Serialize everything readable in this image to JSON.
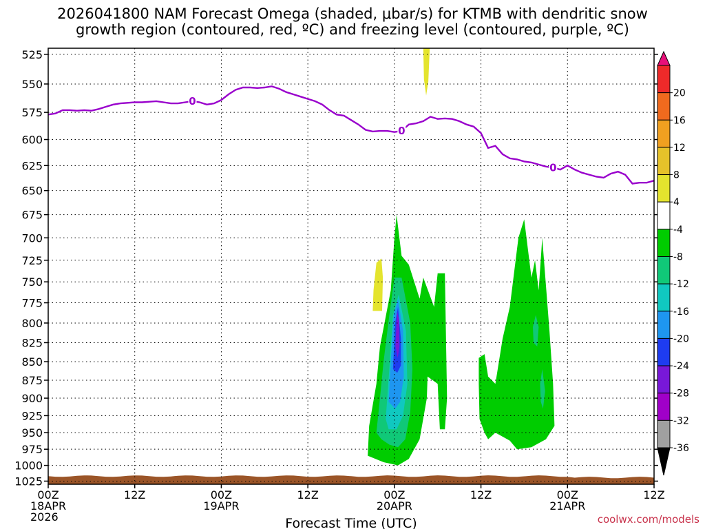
{
  "title_line1": "2026041800 NAM Forecast Omega (shaded, μbar/s) for KTMB with dendritic snow",
  "title_line2": "growth region (contoured, red, ºC) and freezing level (contoured, purple, ºC)",
  "credit": "coolwx.com/models",
  "chart_data": {
    "type": "heatmap",
    "title": "2026041800 NAM Forecast Omega (shaded, μbar/s) for KTMB with dendritic snow growth region (contoured, red, ºC) and freezing level (contoured, purple, ºC)",
    "xlabel": "Forecast Time (UTC)",
    "ylabel": "",
    "x_range_hours": [
      0,
      84
    ],
    "x_ticks": [
      {
        "hour": 0,
        "lines": [
          "00Z",
          "18APR",
          "2026"
        ]
      },
      {
        "hour": 12,
        "lines": [
          "12Z"
        ]
      },
      {
        "hour": 24,
        "lines": [
          "00Z",
          "19APR"
        ]
      },
      {
        "hour": 36,
        "lines": [
          "12Z"
        ]
      },
      {
        "hour": 48,
        "lines": [
          "00Z",
          "20APR"
        ]
      },
      {
        "hour": 60,
        "lines": [
          "12Z"
        ]
      },
      {
        "hour": 72,
        "lines": [
          "00Z",
          "21APR"
        ]
      },
      {
        "hour": 84,
        "lines": [
          "12Z"
        ]
      }
    ],
    "y_scale": "log-pressure",
    "y_range_mb": [
      1030,
      520
    ],
    "y_ticks": [
      525,
      550,
      575,
      600,
      625,
      650,
      675,
      700,
      725,
      750,
      775,
      800,
      825,
      850,
      875,
      900,
      925,
      950,
      975,
      1000,
      1025
    ],
    "grid": true,
    "colorbar": {
      "labels": [
        "20",
        "16",
        "12",
        "8",
        "4",
        "-4",
        "-8",
        "-12",
        "-16",
        "-20",
        "-24",
        "-28",
        "-32",
        "-36"
      ],
      "colors": [
        "#e8107a",
        "#ee2a2a",
        "#f06a1e",
        "#f0a020",
        "#e6c22a",
        "#e4e42e",
        "#ffffff",
        "#00cc00",
        "#10c878",
        "#10c8c0",
        "#1e96f0",
        "#1e3cf0",
        "#7818d8",
        "#a000c8",
        "#a0a0a0",
        "#000000"
      ]
    },
    "freezing_level": {
      "label": "0",
      "color": "#9900cc",
      "points": [
        [
          0,
          577
        ],
        [
          1,
          576
        ],
        [
          2,
          573
        ],
        [
          3,
          573
        ],
        [
          4,
          573.5
        ],
        [
          5,
          573
        ],
        [
          6,
          573.5
        ],
        [
          7,
          572
        ],
        [
          8,
          570
        ],
        [
          9,
          568
        ],
        [
          10,
          567
        ],
        [
          11,
          566.5
        ],
        [
          12,
          566
        ],
        [
          13,
          566
        ],
        [
          14,
          565.5
        ],
        [
          15,
          565
        ],
        [
          16,
          566
        ],
        [
          17,
          567
        ],
        [
          18,
          567
        ],
        [
          19,
          566
        ],
        [
          20,
          565
        ],
        [
          21,
          566
        ],
        [
          22,
          568
        ],
        [
          23,
          567
        ],
        [
          24,
          564
        ],
        [
          25,
          559
        ],
        [
          26,
          555
        ],
        [
          27,
          553
        ],
        [
          28,
          553
        ],
        [
          29,
          553.5
        ],
        [
          30,
          553
        ],
        [
          31,
          552
        ],
        [
          32,
          554
        ],
        [
          33,
          557
        ],
        [
          34,
          559
        ],
        [
          35,
          561
        ],
        [
          36,
          563
        ],
        [
          37,
          565
        ],
        [
          38,
          568
        ],
        [
          39,
          573
        ],
        [
          40,
          577
        ],
        [
          41,
          578
        ],
        [
          42,
          582
        ],
        [
          43,
          586
        ],
        [
          44,
          591
        ],
        [
          45,
          592.5
        ],
        [
          46,
          592
        ],
        [
          47,
          592
        ],
        [
          48,
          593
        ],
        [
          49,
          592
        ],
        [
          50,
          586
        ],
        [
          51,
          585
        ],
        [
          52,
          583
        ],
        [
          53,
          579
        ],
        [
          54,
          581
        ],
        [
          55,
          580.5
        ],
        [
          56,
          581
        ],
        [
          57,
          583
        ],
        [
          58,
          586
        ],
        [
          59,
          588
        ],
        [
          60,
          594
        ],
        [
          61,
          608
        ],
        [
          62,
          606
        ],
        [
          63,
          614
        ],
        [
          64,
          618
        ],
        [
          65,
          619
        ],
        [
          66,
          621
        ],
        [
          67,
          622
        ],
        [
          68,
          624
        ],
        [
          69,
          626
        ],
        [
          70,
          627
        ],
        [
          71,
          629
        ],
        [
          72,
          625
        ],
        [
          73,
          629
        ],
        [
          74,
          632
        ],
        [
          75,
          634
        ],
        [
          76,
          636
        ],
        [
          77,
          637
        ],
        [
          78,
          633
        ],
        [
          79,
          631
        ],
        [
          80,
          634
        ],
        [
          81,
          643
        ],
        [
          82,
          642
        ],
        [
          83,
          642
        ],
        [
          84,
          640
        ]
      ],
      "label_hours": [
        20,
        49,
        70
      ]
    },
    "surface_pressure_mb": 1018,
    "omega_regions": [
      {
        "value": "-6 (green)",
        "hours": [
          44.5,
          55.5
        ],
        "mb": [
          675,
          990
        ]
      },
      {
        "value": "-6 (green)",
        "hours": [
          59.5,
          70
        ],
        "mb": [
          675,
          975
        ]
      },
      {
        "value": "6 (yellow)",
        "hours": [
          45,
          46.5
        ],
        "mb": [
          725,
          785
        ]
      },
      {
        "value": "6 (yellow)",
        "hours": [
          52,
          52.8
        ],
        "mb": [
          525,
          560
        ]
      },
      {
        "value": "-26 (min)",
        "hours": [
          48,
          49
        ],
        "mb": [
          780,
          860
        ]
      }
    ]
  }
}
